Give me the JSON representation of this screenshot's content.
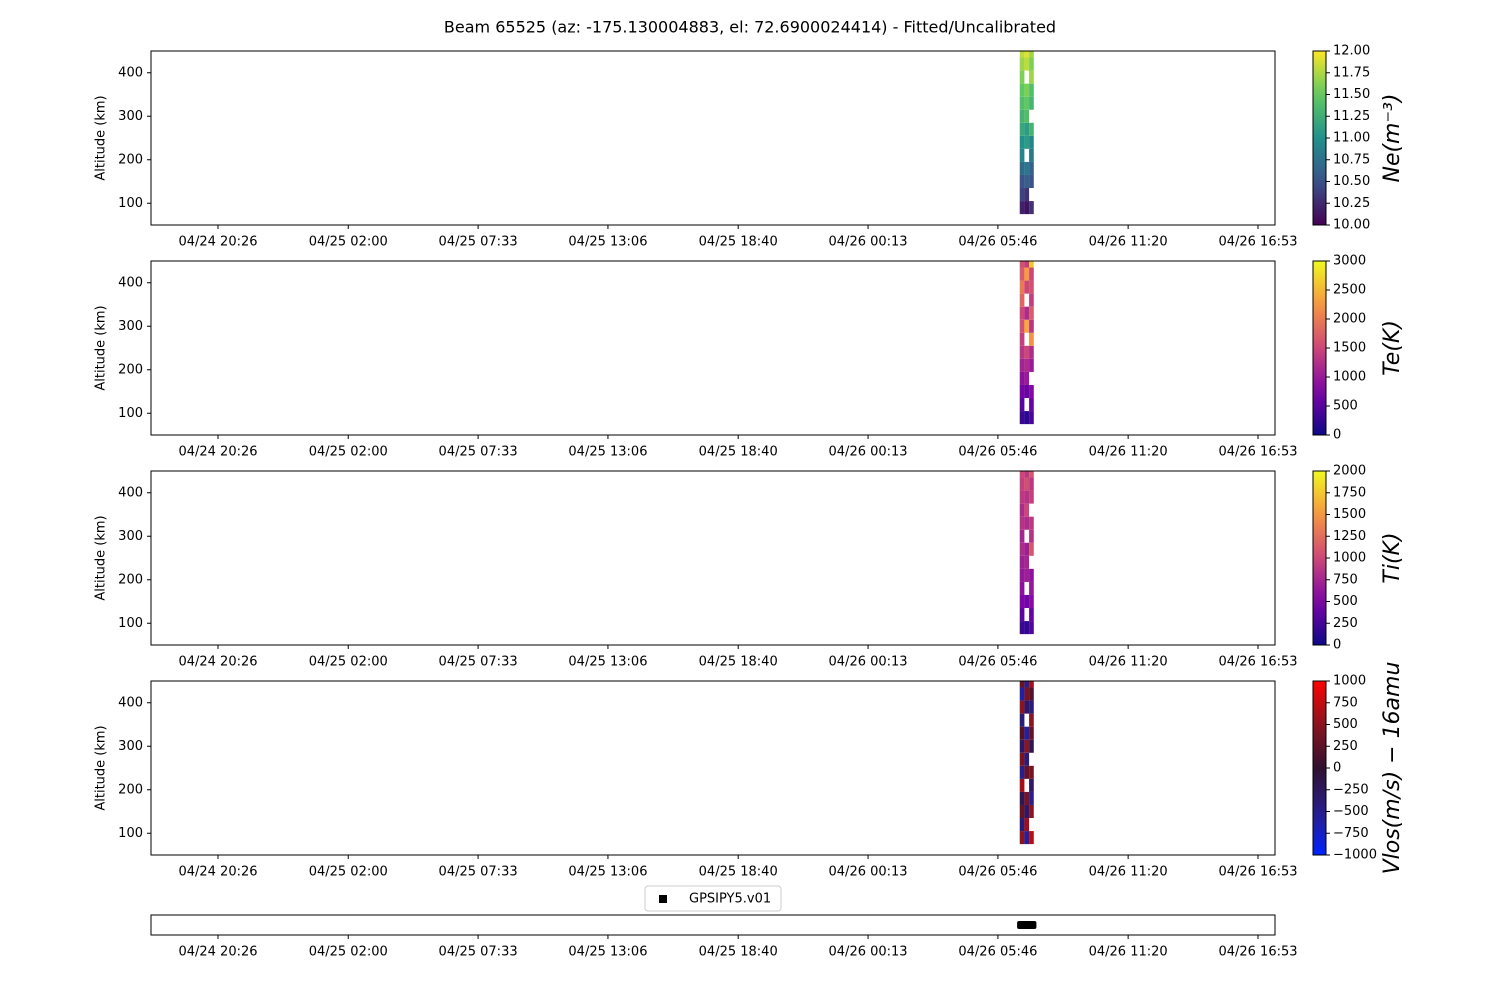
{
  "title": "Beam 65525 (az: -175.130004883, el: 72.6900024414) - Fitted/Uncalibrated",
  "chart_data": [
    {
      "type": "heatmap",
      "ylabel": "Altitude (km)",
      "colorbar_label": "Ne(m⁻³)",
      "colormap": "viridis",
      "clim": [
        10,
        12
      ],
      "cticks": [
        {
          "value": 10,
          "label": "10.00"
        },
        {
          "value": 10.25,
          "label": "10.25"
        },
        {
          "value": 10.5,
          "label": "10.50"
        },
        {
          "value": 10.75,
          "label": "10.75"
        },
        {
          "value": 11,
          "label": "11.00"
        },
        {
          "value": 11.25,
          "label": "11.25"
        },
        {
          "value": 11.5,
          "label": "11.50"
        },
        {
          "value": 11.75,
          "label": "11.75"
        },
        {
          "value": 12,
          "label": "12.00"
        }
      ],
      "xlim": [
        17.57,
        65.61
      ],
      "xticks": [
        {
          "value": 20.433,
          "label": "04/24 20:26"
        },
        {
          "value": 26.0,
          "label": "04/25 02:00"
        },
        {
          "value": 31.55,
          "label": "04/25 07:33"
        },
        {
          "value": 37.1,
          "label": "04/25 13:06"
        },
        {
          "value": 42.667,
          "label": "04/25 18:40"
        },
        {
          "value": 48.217,
          "label": "04/26 00:13"
        },
        {
          "value": 53.767,
          "label": "04/26 05:46"
        },
        {
          "value": 59.333,
          "label": "04/26 11:20"
        },
        {
          "value": 64.883,
          "label": "04/26 16:53"
        }
      ],
      "ylim": [
        50,
        450
      ],
      "yticks": [
        100,
        200,
        300,
        400
      ],
      "x": [
        54.8,
        55.0,
        55.2
      ],
      "y": [
        90,
        120,
        150,
        180,
        210,
        240,
        270,
        300,
        330,
        360,
        390,
        420,
        450
      ],
      "z": [
        [
          10.2,
          10.1,
          10.3
        ],
        [
          10.4,
          10.3,
          null
        ],
        [
          10.5,
          10.6,
          10.5
        ],
        [
          10.7,
          10.8,
          10.6
        ],
        [
          10.9,
          null,
          10.8
        ],
        [
          11.0,
          11.1,
          10.9
        ],
        [
          11.2,
          11.1,
          11.3
        ],
        [
          11.3,
          11.4,
          null
        ],
        [
          11.4,
          11.5,
          11.3
        ],
        [
          11.5,
          11.6,
          11.4
        ],
        [
          11.6,
          null,
          11.7
        ],
        [
          11.7,
          11.8,
          11.6
        ],
        [
          11.8,
          11.9,
          11.7
        ]
      ]
    },
    {
      "type": "heatmap",
      "ylabel": "Altitude (km)",
      "colorbar_label": "Te(K)",
      "colormap": "plasma",
      "clim": [
        0,
        3000
      ],
      "cticks": [
        0,
        500,
        1000,
        1500,
        2000,
        2500,
        3000
      ],
      "xlim": [
        17.57,
        65.61
      ],
      "xticks": [
        {
          "value": 20.433,
          "label": "04/24 20:26"
        },
        {
          "value": 26.0,
          "label": "04/25 02:00"
        },
        {
          "value": 31.55,
          "label": "04/25 07:33"
        },
        {
          "value": 37.1,
          "label": "04/25 13:06"
        },
        {
          "value": 42.667,
          "label": "04/25 18:40"
        },
        {
          "value": 48.217,
          "label": "04/26 00:13"
        },
        {
          "value": 53.767,
          "label": "04/26 05:46"
        },
        {
          "value": 59.333,
          "label": "04/26 11:20"
        },
        {
          "value": 64.883,
          "label": "04/26 16:53"
        }
      ],
      "ylim": [
        50,
        450
      ],
      "yticks": [
        100,
        200,
        300,
        400
      ],
      "x": [
        54.8,
        55.0,
        55.2
      ],
      "y": [
        90,
        120,
        150,
        180,
        210,
        240,
        270,
        300,
        330,
        360,
        390,
        420,
        450
      ],
      "z": [
        [
          300,
          200,
          400
        ],
        [
          500,
          null,
          600
        ],
        [
          700,
          600,
          800
        ],
        [
          900,
          1000,
          null
        ],
        [
          1100,
          1200,
          1000
        ],
        [
          1300,
          1500,
          1200
        ],
        [
          1400,
          null,
          2200
        ],
        [
          1600,
          2400,
          1300
        ],
        [
          1500,
          1200,
          1700
        ],
        [
          1800,
          null,
          1400
        ],
        [
          2000,
          1500,
          1600
        ],
        [
          1700,
          2300,
          1500
        ],
        [
          1600,
          1400,
          2600
        ]
      ]
    },
    {
      "type": "heatmap",
      "ylabel": "Altitude (km)",
      "colorbar_label": "Ti(K)",
      "colormap": "plasma",
      "clim": [
        0,
        2000
      ],
      "cticks": [
        0,
        250,
        500,
        750,
        1000,
        1250,
        1500,
        1750,
        2000
      ],
      "xlim": [
        17.57,
        65.61
      ],
      "xticks": [
        {
          "value": 20.433,
          "label": "04/24 20:26"
        },
        {
          "value": 26.0,
          "label": "04/25 02:00"
        },
        {
          "value": 31.55,
          "label": "04/25 07:33"
        },
        {
          "value": 37.1,
          "label": "04/25 13:06"
        },
        {
          "value": 42.667,
          "label": "04/25 18:40"
        },
        {
          "value": 48.217,
          "label": "04/26 00:13"
        },
        {
          "value": 53.767,
          "label": "04/26 05:46"
        },
        {
          "value": 59.333,
          "label": "04/26 11:20"
        },
        {
          "value": 64.883,
          "label": "04/26 16:53"
        }
      ],
      "ylim": [
        50,
        450
      ],
      "yticks": [
        100,
        200,
        300,
        400
      ],
      "x": [
        54.8,
        55.0,
        55.2
      ],
      "y": [
        90,
        120,
        150,
        180,
        210,
        240,
        270,
        300,
        330,
        360,
        390,
        420,
        450
      ],
      "z": [
        [
          200,
          150,
          300
        ],
        [
          350,
          null,
          400
        ],
        [
          500,
          450,
          550
        ],
        [
          600,
          null,
          650
        ],
        [
          650,
          700,
          600
        ],
        [
          700,
          750,
          null
        ],
        [
          800,
          700,
          1100
        ],
        [
          750,
          null,
          850
        ],
        [
          850,
          800,
          900
        ],
        [
          800,
          1000,
          null
        ],
        [
          900,
          850,
          950
        ],
        [
          950,
          1050,
          900
        ],
        [
          1000,
          900,
          1100
        ]
      ]
    },
    {
      "type": "heatmap",
      "ylabel": "Altitude (km)",
      "colorbar_label": "Vlos(m/s) − 16amu",
      "colormap": "bwr-dark",
      "clim": [
        -1000,
        1000
      ],
      "cticks": [
        {
          "value": -1000,
          "label": "−1000"
        },
        {
          "value": -750,
          "label": "−750"
        },
        {
          "value": -500,
          "label": "−500"
        },
        {
          "value": -250,
          "label": "−250"
        },
        0,
        250,
        500,
        750,
        1000
      ],
      "xlim": [
        17.57,
        65.61
      ],
      "xticks": [
        {
          "value": 20.433,
          "label": "04/24 20:26"
        },
        {
          "value": 26.0,
          "label": "04/25 02:00"
        },
        {
          "value": 31.55,
          "label": "04/25 07:33"
        },
        {
          "value": 37.1,
          "label": "04/25 13:06"
        },
        {
          "value": 42.667,
          "label": "04/25 18:40"
        },
        {
          "value": 48.217,
          "label": "04/26 00:13"
        },
        {
          "value": 53.767,
          "label": "04/26 05:46"
        },
        {
          "value": 59.333,
          "label": "04/26 11:20"
        },
        {
          "value": 64.883,
          "label": "04/26 16:53"
        }
      ],
      "ylim": [
        50,
        450
      ],
      "yticks": [
        100,
        200,
        300,
        400
      ],
      "x": [
        54.8,
        55.0,
        55.2
      ],
      "y": [
        90,
        120,
        150,
        180,
        210,
        240,
        270,
        300,
        330,
        360,
        390,
        420,
        450
      ],
      "z": [
        [
          500,
          -600,
          700
        ],
        [
          -400,
          600,
          null
        ],
        [
          300,
          -300,
          500
        ],
        [
          -200,
          400,
          -500
        ],
        [
          600,
          null,
          -300
        ],
        [
          -500,
          300,
          400
        ],
        [
          400,
          -400,
          null
        ],
        [
          -300,
          500,
          -200
        ],
        [
          200,
          -600,
          300
        ],
        [
          -400,
          null,
          500
        ],
        [
          500,
          -300,
          -400
        ],
        [
          -600,
          400,
          200
        ],
        [
          300,
          -500,
          600
        ]
      ]
    },
    {
      "type": "scatter",
      "legend": "upper center",
      "xlim": [
        17.57,
        65.61
      ],
      "xticks": [
        {
          "value": 20.433,
          "label": "04/24 20:26"
        },
        {
          "value": 26.0,
          "label": "04/25 02:00"
        },
        {
          "value": 31.55,
          "label": "04/25 07:33"
        },
        {
          "value": 37.1,
          "label": "04/25 13:06"
        },
        {
          "value": 42.667,
          "label": "04/25 18:40"
        },
        {
          "value": 48.217,
          "label": "04/26 00:13"
        },
        {
          "value": 53.767,
          "label": "04/26 05:46"
        },
        {
          "value": 59.333,
          "label": "04/26 11:20"
        },
        {
          "value": 64.883,
          "label": "04/26 16:53"
        }
      ],
      "ylim": [
        -1,
        1
      ],
      "series": [
        {
          "name": "GPSIPY5.v01",
          "color": "#000000",
          "x": [
            54.8,
            55.0,
            55.2
          ],
          "values": [
            0,
            0,
            0
          ]
        }
      ]
    }
  ]
}
